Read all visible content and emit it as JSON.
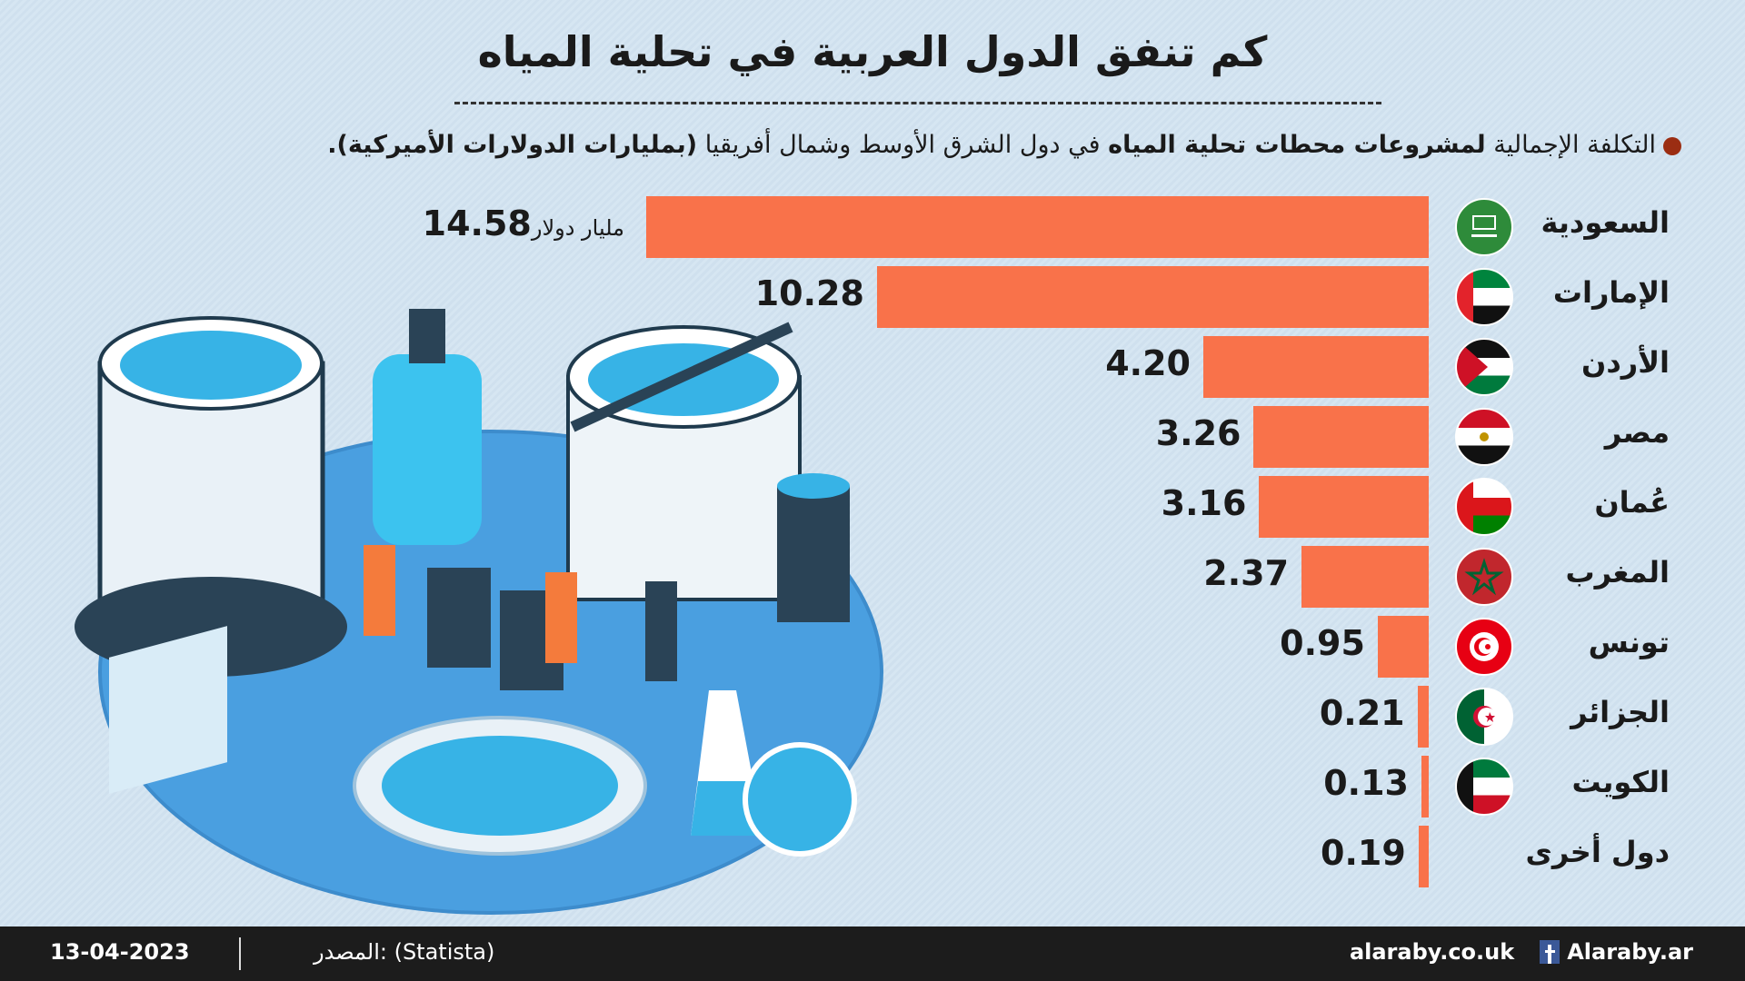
{
  "title": "كم تنفق الدول العربية في تحلية المياه",
  "subtitle": {
    "part1": "التكلفة الإجمالية ",
    "part2": "لمشروعات محطات تحلية المياه",
    "part3": " في دول الشرق الأوسط وشمال أفريقيا ",
    "part4": "(بمليارات الدولارات الأميركية)."
  },
  "chart_data": {
    "type": "bar",
    "orientation": "horizontal",
    "title": "كم تنفق الدول العربية في تحلية المياه",
    "unit_label": "مليار دولار",
    "categories": [
      "السعودية",
      "الإمارات",
      "الأردن",
      "مصر",
      "عُمان",
      "المغرب",
      "تونس",
      "الجزائر",
      "الكويت",
      "دول أخرى"
    ],
    "values": [
      14.58,
      10.28,
      4.2,
      3.26,
      3.16,
      2.37,
      0.95,
      0.21,
      0.13,
      0.19
    ],
    "labels": [
      "14.58",
      "10.28",
      "4.20",
      "3.26",
      "3.16",
      "2.37",
      "0.95",
      "0.21",
      "0.13",
      "0.19"
    ],
    "flags": [
      "f-sa",
      "f-ae",
      "f-jo",
      "f-eg",
      "f-om",
      "f-ma",
      "f-tn",
      "f-dz",
      "f-kw",
      ""
    ],
    "bar_color": "#f9724a",
    "xlim": [
      0,
      14.58
    ]
  },
  "footer": {
    "date": "13-04-2023",
    "source": "المصدر: (Statista)",
    "site": "alaraby.co.uk",
    "facebook": "Alaraby.ar"
  }
}
